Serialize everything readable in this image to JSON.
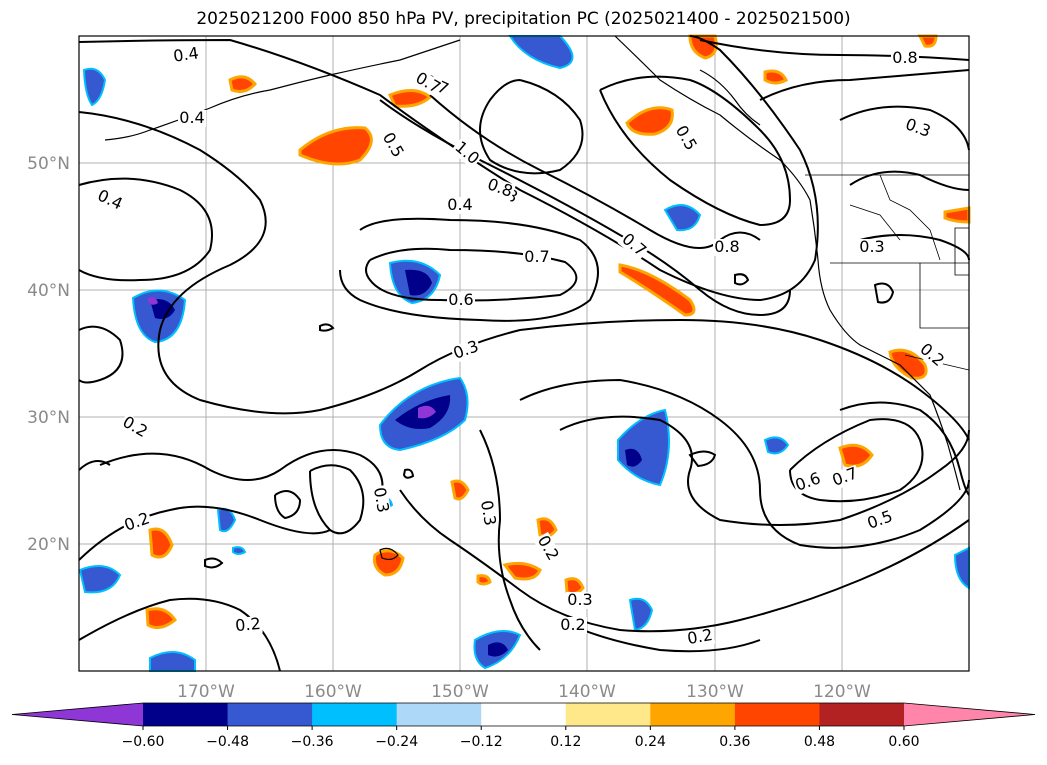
{
  "title": "2025021200 F000 850 hPa PV, precipitation PC (2025021400 - 2025021500)",
  "map": {
    "projection": "PlateCarree",
    "lon_range": [
      -180,
      -110
    ],
    "lat_range": [
      10,
      60
    ],
    "lat_ticks": [
      "50°N",
      "40°N",
      "30°N",
      "20°N"
    ],
    "lon_ticks": [
      "170°W",
      "160°W",
      "150°W",
      "140°W",
      "130°W",
      "120°W"
    ],
    "gridlines": true,
    "pv_contour_labels": [
      "0.4",
      "0.4",
      "0.4",
      "0.5",
      "0.7",
      "1.0",
      "0.8",
      "0.4",
      "0.7",
      "0.6",
      "0.3",
      "0.2",
      "0.2",
      "0.3",
      "0.3",
      "0.2",
      "0.3",
      "0.2",
      "0.2",
      "0.2",
      "0.7",
      "0.8",
      "0.3",
      "0.8",
      "0.3",
      "0.6",
      "0.7",
      "0.5",
      "0.2",
      "0.7",
      "0.5",
      "0.8"
    ]
  },
  "colorbar": {
    "ticks": [
      "−0.60",
      "−0.48",
      "−0.36",
      "−0.24",
      "−0.12",
      "0.12",
      "0.24",
      "0.36",
      "0.48",
      "0.60"
    ],
    "colors": [
      "#8e36d6",
      "#00008b",
      "#3658d0",
      "#00bfff",
      "#add8f7",
      "#ffffff",
      "#ffe88a",
      "#ffa500",
      "#ff4500",
      "#b22222",
      "#ff85aa"
    ],
    "extend": "both"
  }
}
